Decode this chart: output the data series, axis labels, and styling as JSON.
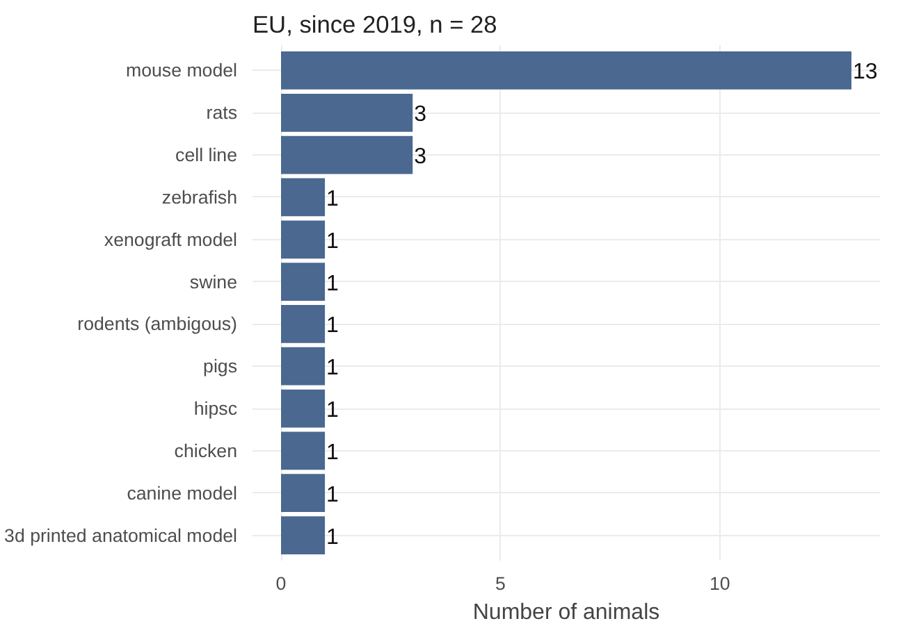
{
  "chart_data": {
    "type": "bar",
    "orientation": "horizontal",
    "title": "EU, since 2019, n = 28",
    "xlabel": "Number of animals",
    "categories": [
      "mouse model",
      "rats",
      "cell line",
      "zebrafish",
      "xenograft model",
      "swine",
      "rodents (ambigous)",
      "pigs",
      "hipsc",
      "chicken",
      "canine model",
      "3d printed anatomical model"
    ],
    "values": [
      13,
      3,
      3,
      1,
      1,
      1,
      1,
      1,
      1,
      1,
      1,
      1
    ],
    "color": "#4a6890",
    "xlim": [
      -0.65,
      13.65
    ],
    "xticks": [
      0,
      5,
      10
    ],
    "grid": true,
    "data_labels": true
  }
}
